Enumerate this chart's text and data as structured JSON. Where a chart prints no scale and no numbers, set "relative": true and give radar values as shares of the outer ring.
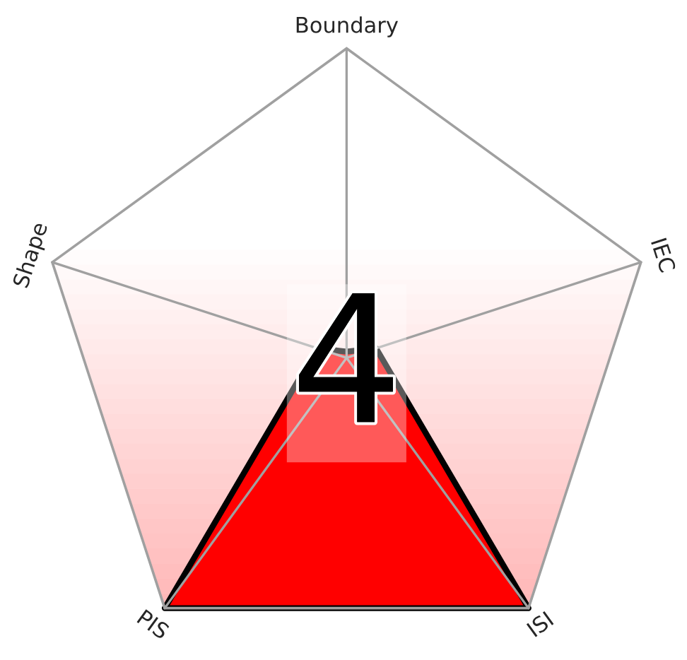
{
  "chart_data": {
    "type": "radar",
    "relative": true,
    "categories": [
      "Boundary",
      "IEC",
      "ISI",
      "PIS",
      "Shape"
    ],
    "series": [
      {
        "color": "#ff0000",
        "values": [
          0.02,
          0.1,
          1,
          1,
          0.1
        ]
      }
    ],
    "annotations": [
      "4"
    ]
  }
}
